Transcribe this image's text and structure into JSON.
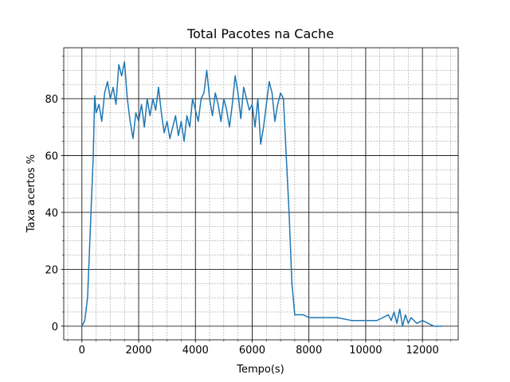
{
  "chart_data": {
    "type": "line",
    "title": "Total Pacotes na Cache",
    "x_label": "Tempo(s)",
    "y_label": "Taxa acertos %",
    "color": "#1f77b4",
    "x": [
      0,
      100,
      200,
      300,
      400,
      450,
      500,
      600,
      700,
      800,
      900,
      1000,
      1100,
      1200,
      1300,
      1400,
      1500,
      1600,
      1700,
      1800,
      1900,
      2000,
      2100,
      2200,
      2300,
      2400,
      2500,
      2600,
      2700,
      2800,
      2900,
      3000,
      3100,
      3200,
      3300,
      3400,
      3500,
      3600,
      3700,
      3800,
      3900,
      4000,
      4100,
      4200,
      4300,
      4400,
      4500,
      4600,
      4700,
      4800,
      4900,
      5000,
      5100,
      5200,
      5300,
      5400,
      5500,
      5600,
      5700,
      5800,
      5900,
      6000,
      6100,
      6200,
      6300,
      6400,
      6500,
      6600,
      6700,
      6800,
      6900,
      7000,
      7100,
      7200,
      7300,
      7400,
      7500,
      7600,
      7800,
      8000,
      8500,
      9000,
      9500,
      10000,
      10400,
      10600,
      10800,
      10900,
      11000,
      11100,
      11200,
      11300,
      11400,
      11500,
      11600,
      11800,
      12000,
      12200,
      12400,
      12700
    ],
    "values": [
      0,
      2,
      10,
      35,
      60,
      81,
      75,
      78,
      72,
      82,
      86,
      80,
      84,
      78,
      92,
      88,
      93,
      80,
      72,
      66,
      75,
      72,
      78,
      70,
      80,
      74,
      80,
      76,
      84,
      75,
      68,
      72,
      66,
      70,
      74,
      67,
      72,
      65,
      74,
      70,
      80,
      76,
      72,
      80,
      82,
      90,
      80,
      74,
      82,
      78,
      72,
      80,
      76,
      70,
      78,
      88,
      82,
      73,
      84,
      80,
      76,
      78,
      70,
      80,
      64,
      70,
      78,
      86,
      82,
      72,
      78,
      82,
      80,
      60,
      40,
      15,
      4,
      4,
      4,
      3,
      3,
      3,
      2,
      2,
      2,
      3,
      4,
      2,
      5,
      1,
      6,
      0,
      4,
      1,
      3,
      1,
      2,
      1,
      0,
      0
    ],
    "xlim": [
      -640,
      13260
    ],
    "ylim": [
      -4.8,
      97.9
    ],
    "xticks": [
      0,
      2000,
      4000,
      6000,
      8000,
      10000,
      12000
    ],
    "yticks": [
      0,
      20,
      40,
      60,
      80
    ],
    "grid": true,
    "minor_grid": true
  }
}
